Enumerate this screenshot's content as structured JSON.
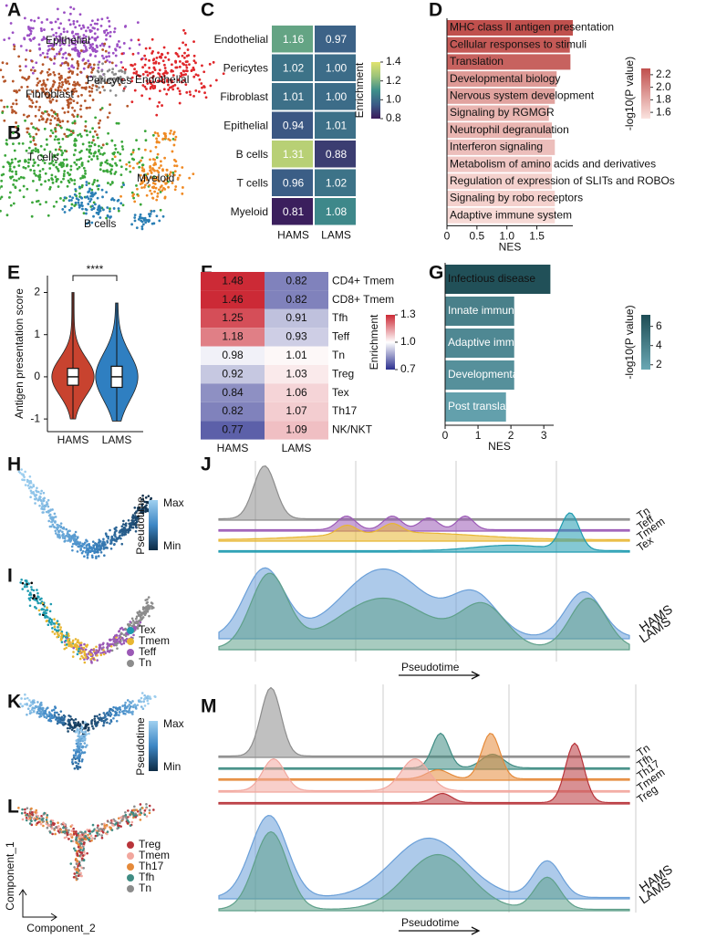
{
  "panel_labels": [
    "A",
    "B",
    "C",
    "D",
    "E",
    "F",
    "G",
    "H",
    "I",
    "J",
    "K",
    "L",
    "M"
  ],
  "panels": {
    "A": {
      "labels": [
        "Epithelial",
        "Pericytes",
        "Fibroblast",
        "Endothelial"
      ],
      "colors": [
        "#9b4fc4",
        "#8a8a8a",
        "#b5562a",
        "#e0262a"
      ]
    },
    "B": {
      "labels": [
        "T cells",
        "Myeloid",
        "B cells"
      ],
      "colors": [
        "#3aa63a",
        "#f08a24",
        "#2a7fb5"
      ]
    },
    "H": {
      "colorbar_title": "Pseudotime",
      "max": "Max",
      "min": "Min"
    },
    "I": {
      "legend": [
        "Tex",
        "Tmem",
        "Teff",
        "Tn"
      ],
      "colors": [
        "#1f9bb0",
        "#e8b631",
        "#9b59b6",
        "#8c8c8c"
      ]
    },
    "J": {
      "tracks": [
        "Tn",
        "Teff",
        "Tmem",
        "Tex"
      ],
      "groups": [
        "HAMS",
        "LAMS"
      ],
      "group_colors": [
        "#6a9fd8",
        "#5fa08a"
      ],
      "x_label": "Pseudotime"
    },
    "K": {
      "colorbar_title": "Pseudotime",
      "max": "Max",
      "min": "Min"
    },
    "L": {
      "legend": [
        "Treg",
        "Tmem",
        "Th17",
        "Tfh",
        "Tn"
      ],
      "colors": [
        "#b8343a",
        "#f2a79e",
        "#e58a3a",
        "#3f8c83",
        "#8c8c8c"
      ],
      "y_label": "Component_1",
      "x_label": "Component_2"
    },
    "M": {
      "tracks": [
        "Tn",
        "Tfh",
        "Th17",
        "Tmem",
        "Treg"
      ],
      "groups": [
        "HAMS",
        "LAMS"
      ],
      "group_colors": [
        "#6a9fd8",
        "#5fa08a"
      ],
      "x_label": "Pseudotime"
    }
  },
  "chart_data": [
    {
      "type": "heatmap",
      "x": [
        "HAMS",
        "LAMS"
      ],
      "y": [
        "Endothelial",
        "Pericytes",
        "Fibroblast",
        "Epithelial",
        "B cells",
        "T cells",
        "Myeloid"
      ],
      "values": [
        [
          1.16,
          0.97
        ],
        [
          1.02,
          1.0
        ],
        [
          1.01,
          1.0
        ],
        [
          0.94,
          1.01
        ],
        [
          1.31,
          0.88
        ],
        [
          0.96,
          1.02
        ],
        [
          0.81,
          1.08
        ]
      ],
      "value_labels": [
        [
          "1.16",
          "0.97"
        ],
        [
          "1.02",
          "1.00"
        ],
        [
          "1.01",
          "1.00"
        ],
        [
          "0.94",
          "1.01"
        ],
        [
          "1.31",
          "0.88"
        ],
        [
          "0.96",
          "1.02"
        ],
        [
          "0.81",
          "1.08"
        ]
      ],
      "colorscale": [
        "#3b1b5a",
        "#3b5b86",
        "#3f8f8b",
        "#9cc37a",
        "#e1e36e"
      ],
      "clim": [
        0.8,
        1.4
      ],
      "colorbar_title": "Enrichment",
      "colorbar_ticks": [
        1.4,
        1.2,
        {
          "value": 1,
          "label": "1.0"
        },
        0.8
      ]
    },
    {
      "type": "bar",
      "orientation": "horizontal",
      "categories": [
        "MHC class II antigen presentation",
        "Cellular responses to stimuli",
        "Translation",
        "Developmental biology",
        "Nervous system development",
        "Signaling by RGMGR",
        "Neutrophil degranulation",
        "Interferon signaling",
        "Metabolism of amino acids and derivatives",
        "Regulation of expression of SLITs and ROBOs",
        "Signaling by robo receptors",
        "Adaptive immune system"
      ],
      "values": [
        2.1,
        2.05,
        2.06,
        1.83,
        1.8,
        1.7,
        1.75,
        1.8,
        1.75,
        1.75,
        1.8,
        1.8
      ],
      "color_values": [
        2.3,
        2.25,
        2.2,
        1.9,
        1.85,
        1.75,
        1.75,
        1.7,
        1.65,
        1.6,
        1.6,
        1.55
      ],
      "colorscale": [
        "#fbe3df",
        "#c0504d"
      ],
      "clim": [
        1.5,
        2.3
      ],
      "xlabel": "NES",
      "xlim": [
        0,
        2.1
      ],
      "xticks": [
        0,
        0.5,
        {
          "value": 1,
          "label": "1.0"
        },
        1.5
      ],
      "colorbar_title": "-log10(P value)",
      "colorbar_ticks": [
        2.2,
        {
          "value": 2,
          "label": "2.0"
        },
        1.8,
        1.6
      ]
    },
    {
      "type": "violin",
      "categories": [
        "HAMS",
        "LAMS"
      ],
      "colors": [
        "#c8432f",
        "#2f7fc1"
      ],
      "ylabel": "Antigen presentation score",
      "ylim": [
        -1.3,
        2.4
      ],
      "yticks": [
        -1,
        0,
        1,
        2
      ],
      "box": [
        {
          "min": -1.0,
          "q1": -0.2,
          "median": 0,
          "q3": 0.2,
          "max": 2.0
        },
        {
          "min": -1.05,
          "q1": -0.25,
          "median": 0,
          "q3": 0.25,
          "max": 1.75
        }
      ],
      "annotation": "****"
    },
    {
      "type": "heatmap",
      "x": [
        "HAMS",
        "LAMS"
      ],
      "y": [
        "CD4+ Tmem",
        "CD8+ Tmem",
        "Tfh",
        "Teff",
        "Tn",
        "Treg",
        "Tex",
        "Th17",
        "NK/NKT"
      ],
      "values": [
        [
          1.48,
          0.82
        ],
        [
          1.46,
          0.82
        ],
        [
          1.25,
          0.91
        ],
        [
          1.18,
          0.93
        ],
        [
          0.98,
          1.01
        ],
        [
          0.92,
          1.03
        ],
        [
          0.84,
          1.06
        ],
        [
          0.82,
          1.07
        ],
        [
          0.77,
          1.09
        ]
      ],
      "value_labels": [
        [
          "1.48",
          "0.82"
        ],
        [
          "1.46",
          "0.82"
        ],
        [
          "1.25",
          "0.91"
        ],
        [
          "1.18",
          "0.93"
        ],
        [
          "0.98",
          "1.01"
        ],
        [
          "0.92",
          "1.03"
        ],
        [
          "0.84",
          "1.06"
        ],
        [
          "0.82",
          "1.07"
        ],
        [
          "0.77",
          "1.09"
        ]
      ],
      "colorscale": [
        "#2b2f8f",
        "#ffffff",
        "#cc2a36"
      ],
      "clim": [
        0.7,
        1.3
      ],
      "colorbar_title": "Enrichment",
      "colorbar_ticks": [
        1.3,
        {
          "value": 1,
          "label": "1.0"
        },
        0.7
      ]
    },
    {
      "type": "bar",
      "orientation": "horizontal",
      "categories": [
        "Infectious disease",
        "Innate immune system",
        "Adaptive immune system",
        "Developmental biology",
        "Post translational protein modification"
      ],
      "values": [
        3.2,
        2.1,
        2.1,
        2.1,
        1.85
      ],
      "color_values": [
        7,
        4,
        3.5,
        3,
        2
      ],
      "colorscale": [
        "#6aa8b4",
        "#1e4d55"
      ],
      "clim": [
        1.5,
        7.2
      ],
      "xlabel": "NES",
      "xlim": [
        0,
        3.3
      ],
      "xticks": [
        0,
        1,
        2,
        3
      ],
      "colorbar_title": "-log10(P value)",
      "colorbar_ticks": [
        6,
        4,
        2
      ]
    }
  ]
}
